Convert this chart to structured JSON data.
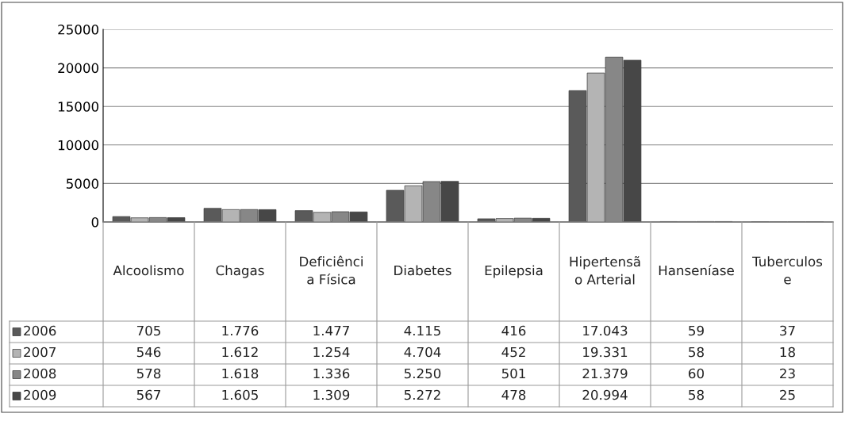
{
  "chart_data": {
    "type": "bar",
    "categories": [
      "Alcoolismo",
      "Chagas",
      "Deficiência Física",
      "Diabetes",
      "Epilepsia",
      "Hipertensão Arterial",
      "Hanseníase",
      "Tuberculose"
    ],
    "series": [
      {
        "name": "2006",
        "color": "#5a5a5a",
        "values": [
          705,
          1776,
          1477,
          4115,
          416,
          17043,
          59,
          37
        ],
        "value_labels": [
          "705",
          "1.776",
          "1.477",
          "4.115",
          "416",
          "17.043",
          "59",
          "37"
        ]
      },
      {
        "name": "2007",
        "color": "#b4b4b4",
        "values": [
          546,
          1612,
          1254,
          4704,
          452,
          19331,
          58,
          18
        ],
        "value_labels": [
          "546",
          "1.612",
          "1.254",
          "4.704",
          "452",
          "19.331",
          "58",
          "18"
        ]
      },
      {
        "name": "2008",
        "color": "#878787",
        "values": [
          578,
          1618,
          1336,
          5250,
          501,
          21379,
          60,
          23
        ],
        "value_labels": [
          "578",
          "1.618",
          "1.336",
          "5.250",
          "501",
          "21.379",
          "60",
          "23"
        ]
      },
      {
        "name": "2009",
        "color": "#474747",
        "values": [
          567,
          1605,
          1309,
          5272,
          478,
          20994,
          58,
          25
        ],
        "value_labels": [
          "567",
          "1.605",
          "1.309",
          "5.272",
          "478",
          "20.994",
          "58",
          "25"
        ]
      }
    ],
    "ylim": [
      0,
      25000
    ],
    "yticks": [
      0,
      5000,
      10000,
      15000,
      20000,
      25000
    ],
    "grid": "y",
    "legend": "bottom"
  }
}
